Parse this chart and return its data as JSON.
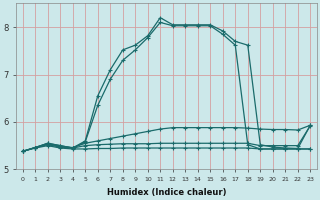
{
  "xlabel": "Humidex (Indice chaleur)",
  "bg_color": "#cce8ea",
  "grid_color": "#d4a0a0",
  "line_color": "#1a6b6b",
  "xlim": [
    -0.5,
    23.5
  ],
  "ylim": [
    5.0,
    8.5
  ],
  "yticks": [
    5,
    6,
    7,
    8
  ],
  "xticks": [
    0,
    1,
    2,
    3,
    4,
    5,
    6,
    7,
    8,
    9,
    10,
    11,
    12,
    13,
    14,
    15,
    16,
    17,
    18,
    19,
    20,
    21,
    22,
    23
  ],
  "series": [
    {
      "x": [
        0,
        1,
        2,
        3,
        4,
        5,
        6,
        7,
        8,
        9,
        10,
        11,
        12,
        13,
        14,
        15,
        16,
        17,
        18,
        19,
        20,
        21,
        22,
        23
      ],
      "y": [
        5.38,
        5.45,
        5.5,
        5.45,
        5.43,
        5.43,
        5.44,
        5.44,
        5.45,
        5.45,
        5.45,
        5.45,
        5.45,
        5.45,
        5.45,
        5.45,
        5.45,
        5.45,
        5.45,
        5.43,
        5.43,
        5.43,
        5.43,
        5.43
      ]
    },
    {
      "x": [
        0,
        1,
        2,
        3,
        4,
        5,
        6,
        7,
        8,
        9,
        10,
        11,
        12,
        13,
        14,
        15,
        16,
        17,
        18,
        19,
        20,
        21,
        22,
        23
      ],
      "y": [
        5.38,
        5.46,
        5.52,
        5.47,
        5.45,
        5.5,
        5.52,
        5.53,
        5.54,
        5.54,
        5.54,
        5.55,
        5.55,
        5.55,
        5.55,
        5.55,
        5.55,
        5.55,
        5.55,
        5.5,
        5.5,
        5.5,
        5.5,
        5.92
      ]
    },
    {
      "x": [
        0,
        1,
        2,
        3,
        4,
        5,
        6,
        7,
        8,
        9,
        10,
        11,
        12,
        13,
        14,
        15,
        16,
        17,
        18,
        19,
        20,
        21,
        22,
        23
      ],
      "y": [
        5.38,
        5.46,
        5.54,
        5.48,
        5.46,
        5.55,
        5.6,
        5.65,
        5.7,
        5.75,
        5.8,
        5.85,
        5.88,
        5.88,
        5.88,
        5.88,
        5.88,
        5.88,
        5.87,
        5.85,
        5.84,
        5.84,
        5.83,
        5.93
      ]
    },
    {
      "x": [
        0,
        1,
        2,
        3,
        4,
        5,
        6,
        7,
        8,
        9,
        10,
        11,
        12,
        13,
        14,
        15,
        16,
        17,
        18,
        19,
        20,
        21,
        22,
        23
      ],
      "y": [
        5.38,
        5.46,
        5.55,
        5.5,
        5.45,
        5.58,
        6.35,
        6.9,
        7.3,
        7.52,
        7.78,
        8.1,
        8.03,
        8.03,
        8.03,
        8.03,
        7.85,
        7.62,
        5.52,
        5.43,
        5.43,
        5.43,
        5.43,
        5.43
      ]
    },
    {
      "x": [
        0,
        1,
        2,
        3,
        4,
        5,
        6,
        7,
        8,
        9,
        10,
        11,
        12,
        13,
        14,
        15,
        16,
        17,
        18,
        19,
        20,
        21,
        22,
        23
      ],
      "y": [
        5.38,
        5.46,
        5.55,
        5.5,
        5.45,
        5.6,
        6.55,
        7.1,
        7.52,
        7.62,
        7.82,
        8.2,
        8.05,
        8.05,
        8.05,
        8.05,
        7.92,
        7.7,
        7.62,
        5.52,
        5.47,
        5.45,
        5.44,
        5.93
      ]
    }
  ]
}
